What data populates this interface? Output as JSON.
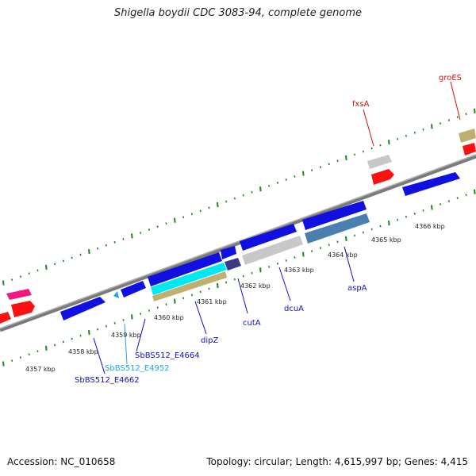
{
  "title": "Shigella boydii CDC 3083-94, complete genome",
  "footer": {
    "accession": "Accession: NC_010658",
    "summary": "Topology: circular; Length: 4,615,997 bp; Genes: 4,415"
  },
  "colors": {
    "backbone": "#808080",
    "tick_marks": "#1a8a1a",
    "gene_blue": "#1010e0",
    "gene_red": "#ff1010",
    "gene_gray": "#c8c8c8",
    "gene_olive": "#c0b070",
    "gene_cyan": "#00e8f0",
    "gene_steel": "#4a80b0",
    "gene_navy": "#3a3a80",
    "gene_pink": "#f01880",
    "label_red": "#d01010",
    "label_blue": "#1010c0",
    "label_cyan": "#20a8e0"
  },
  "kbp_labels": [
    "4357 kbp",
    "4358 kbp",
    "4359 kbp",
    "4360 kbp",
    "4361 kbp",
    "4362 kbp",
    "4363 kbp",
    "4364 kbp",
    "4365 kbp",
    "4366 kbp"
  ],
  "gene_labels": {
    "groES": "groES",
    "fxsA": "fxsA",
    "aspA": "aspA",
    "dcuA": "dcuA",
    "cutA": "cutA",
    "dipZ": "dipZ",
    "e4664": "SbBS512_E4664",
    "e4952": "SbBS512_E4952",
    "e4662": "SbBS512_E4662"
  }
}
